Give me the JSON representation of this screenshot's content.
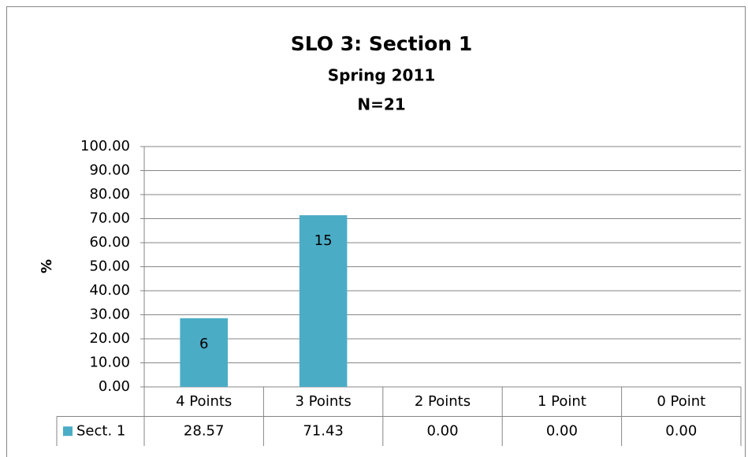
{
  "chart_data": {
    "type": "bar",
    "title": "SLO 3: Section 1",
    "subtitle": "Spring 2011",
    "note": "N=21",
    "ylabel": "%",
    "categories": [
      "4 Points",
      "3 Points",
      "2 Points",
      "1 Point",
      "0 Point"
    ],
    "series": [
      {
        "name": "Sect. 1",
        "color": "#4bacc6",
        "values": [
          28.57,
          71.43,
          0,
          0,
          0
        ],
        "value_labels": [
          "28.57",
          "71.43",
          "0.00",
          "0.00",
          "0.00"
        ],
        "counts": [
          6,
          15,
          null,
          null,
          null
        ]
      }
    ],
    "ylim": [
      0,
      100
    ],
    "yticks": [
      {
        "value": 0,
        "label": "0.00"
      },
      {
        "value": 10,
        "label": "10.00"
      },
      {
        "value": 20,
        "label": "20.00"
      },
      {
        "value": 30,
        "label": "30.00"
      },
      {
        "value": 40,
        "label": "40.00"
      },
      {
        "value": 50,
        "label": "50.00"
      },
      {
        "value": 60,
        "label": "60.00"
      },
      {
        "value": 70,
        "label": "70.00"
      },
      {
        "value": 80,
        "label": "80.00"
      },
      {
        "value": 90,
        "label": "90.00"
      },
      {
        "value": 100,
        "label": "100.00"
      }
    ],
    "grid": true,
    "data_table": true
  }
}
